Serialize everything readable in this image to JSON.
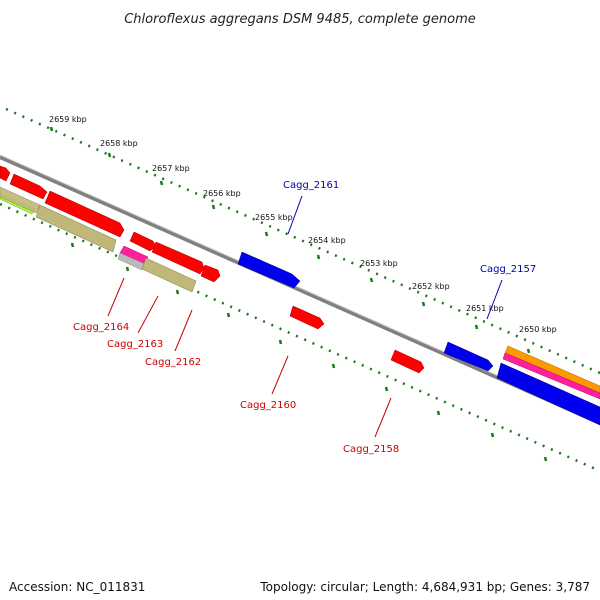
{
  "title": "Chloroflexus aggregans DSM 9485, complete genome",
  "accession_text": "Accession: NC_011831",
  "topology_text": "Topology: circular; Length: 4,684,931 bp; Genes: 3,787",
  "colors": {
    "forward_label": "#0000aa",
    "reverse_label": "#cc0000",
    "backbone": "#808080",
    "tick": "#1a7a1a",
    "red_feature": "#ff0000",
    "blue_feature": "#0000ee",
    "olive_feature": "#c0b878",
    "orange_feature": "#ff9900",
    "pink_feature": "#ff1f9f",
    "lime_feature": "#a8ff40"
  },
  "ruler_ticks": [
    {
      "label": "2659 kbp"
    },
    {
      "label": "2658 kbp"
    },
    {
      "label": "2657 kbp"
    },
    {
      "label": "2656 kbp"
    },
    {
      "label": "2655 kbp"
    },
    {
      "label": "2654 kbp"
    },
    {
      "label": "2653 kbp"
    },
    {
      "label": "2652 kbp"
    },
    {
      "label": "2651 kbp"
    },
    {
      "label": "2650 kbp"
    }
  ],
  "gene_labels": {
    "forward": [
      "Cagg_2161",
      "Cagg_2157"
    ],
    "reverse": [
      "Cagg_2164",
      "Cagg_2163",
      "Cagg_2162",
      "Cagg_2160",
      "Cagg_2158"
    ]
  }
}
